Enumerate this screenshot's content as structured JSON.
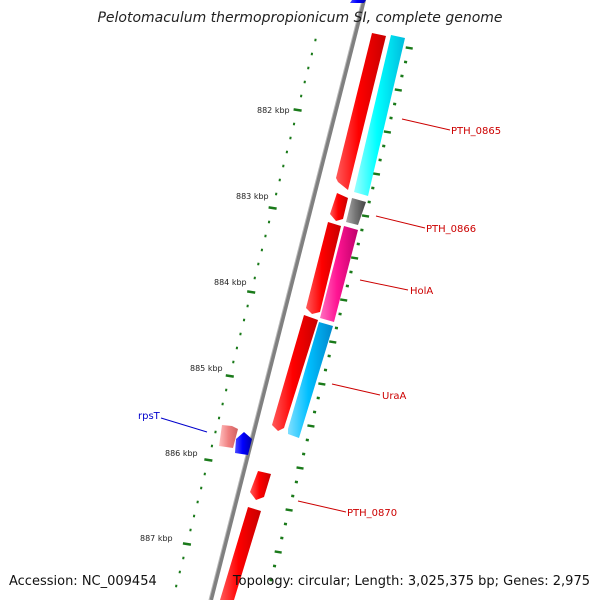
{
  "title": "Pelotomaculum thermopropionicum SI, complete genome",
  "footer": {
    "accession": "Accession: NC_009454",
    "summary": "Topology: circular; Length: 3,025,375 bp; Genes: 2,975"
  },
  "scale_labels": [
    "882 kbp",
    "883 kbp",
    "884 kbp",
    "885 kbp",
    "886 kbp",
    "887 kbp"
  ],
  "gene_labels": {
    "pth0865": "PTH_0865",
    "pth0866": "PTH_0866",
    "hola": "HolA",
    "uraa": "UraA",
    "rpst": "rpsT",
    "pth0870": "PTH_0870"
  },
  "colors": {
    "forward_strand": "#ff0000",
    "reverse_strand": "#0000ff",
    "pth0865": "#00ffff",
    "pth0866": "#777777",
    "hola": "#ff1493",
    "uraa": "#00bfff",
    "label_red": "#cc0000",
    "label_blue": "#0000cc",
    "tick_green": "#1a7a1a",
    "backbone": "#808080"
  }
}
